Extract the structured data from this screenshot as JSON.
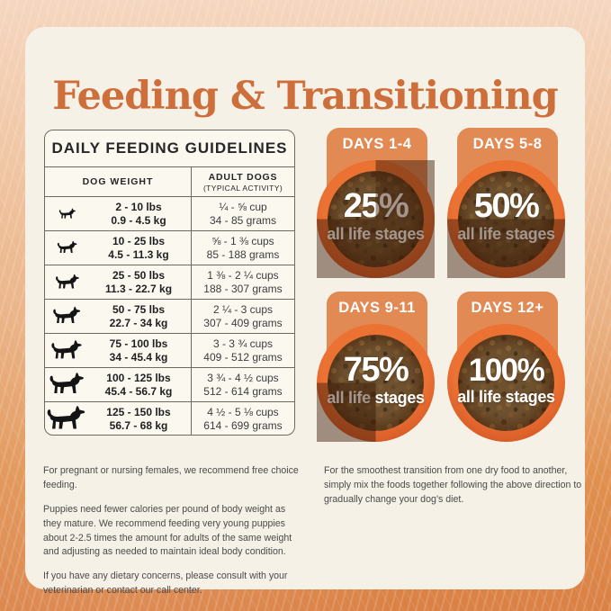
{
  "title": "Feeding & Transitioning",
  "table": {
    "title": "DAILY FEEDING GUIDELINES",
    "col_weight_header": "DOG WEIGHT",
    "col_amount_header": "ADULT DOGS",
    "col_amount_subheader": "(TYPICAL ACTIVITY)",
    "rows": [
      {
        "lbs": "2 - 10 lbs",
        "kg": "0.9 - 4.5 kg",
        "cups": "¼ - ⅝ cup",
        "grams": "34 - 85 grams"
      },
      {
        "lbs": "10 - 25 lbs",
        "kg": "4.5 - 11.3 kg",
        "cups": "⅝ - 1 ⅜ cups",
        "grams": "85 - 188 grams"
      },
      {
        "lbs": "25 - 50 lbs",
        "kg": "11.3 - 22.7 kg",
        "cups": "1 ⅜ - 2 ¼ cups",
        "grams": "188 - 307 grams"
      },
      {
        "lbs": "50 - 75 lbs",
        "kg": "22.7 - 34 kg",
        "cups": "2 ¼ - 3 cups",
        "grams": "307 - 409 grams"
      },
      {
        "lbs": "75 - 100 lbs",
        "kg": "34 - 45.4 kg",
        "cups": "3 - 3 ¾ cups",
        "grams": "409 - 512 grams"
      },
      {
        "lbs": "100 - 125 lbs",
        "kg": "45.4 - 56.7 kg",
        "cups": "3 ¾ - 4 ½ cups",
        "grams": "512 - 614 grams"
      },
      {
        "lbs": "125 - 150 lbs",
        "kg": "56.7 - 68 kg",
        "cups": "4 ½ - 5 ⅛ cups",
        "grams": "614 - 699 grams"
      }
    ]
  },
  "transition": {
    "stages": [
      {
        "days": "DAYS 1-4",
        "percent": "25%",
        "value": 25,
        "label": "all life stages"
      },
      {
        "days": "DAYS 5-8",
        "percent": "50%",
        "value": 50,
        "label": "all life stages"
      },
      {
        "days": "DAYS 9-11",
        "percent": "75%",
        "value": 75,
        "label": "all life stages"
      },
      {
        "days": "DAYS 12+",
        "percent": "100%",
        "value": 100,
        "label": "all life stages"
      }
    ]
  },
  "notes": {
    "left": [
      "For pregnant or nursing females, we recommend free choice feeding.",
      "Puppies need fewer calories per pound of body weight as they mature. We recommend feeding very young puppies about 2-2.5 times the amount for adults of the same weight and adjusting as needed to maintain ideal body condition.",
      "If you have any dietary concerns, please consult with your veterinarian or contact our call center."
    ],
    "right": [
      "For the smoothest transition from one dry food to another, simply mix the foods together following the above direction to gradually change your dog’s diet."
    ]
  },
  "colors": {
    "title_orange": "#ce6e3b",
    "badge_orange": "#e28a54",
    "bowl_rim_orange": "#d85c28",
    "card_cream": "#f6f1e6",
    "overlay_dark": "rgba(57,25,6,0.46)"
  }
}
